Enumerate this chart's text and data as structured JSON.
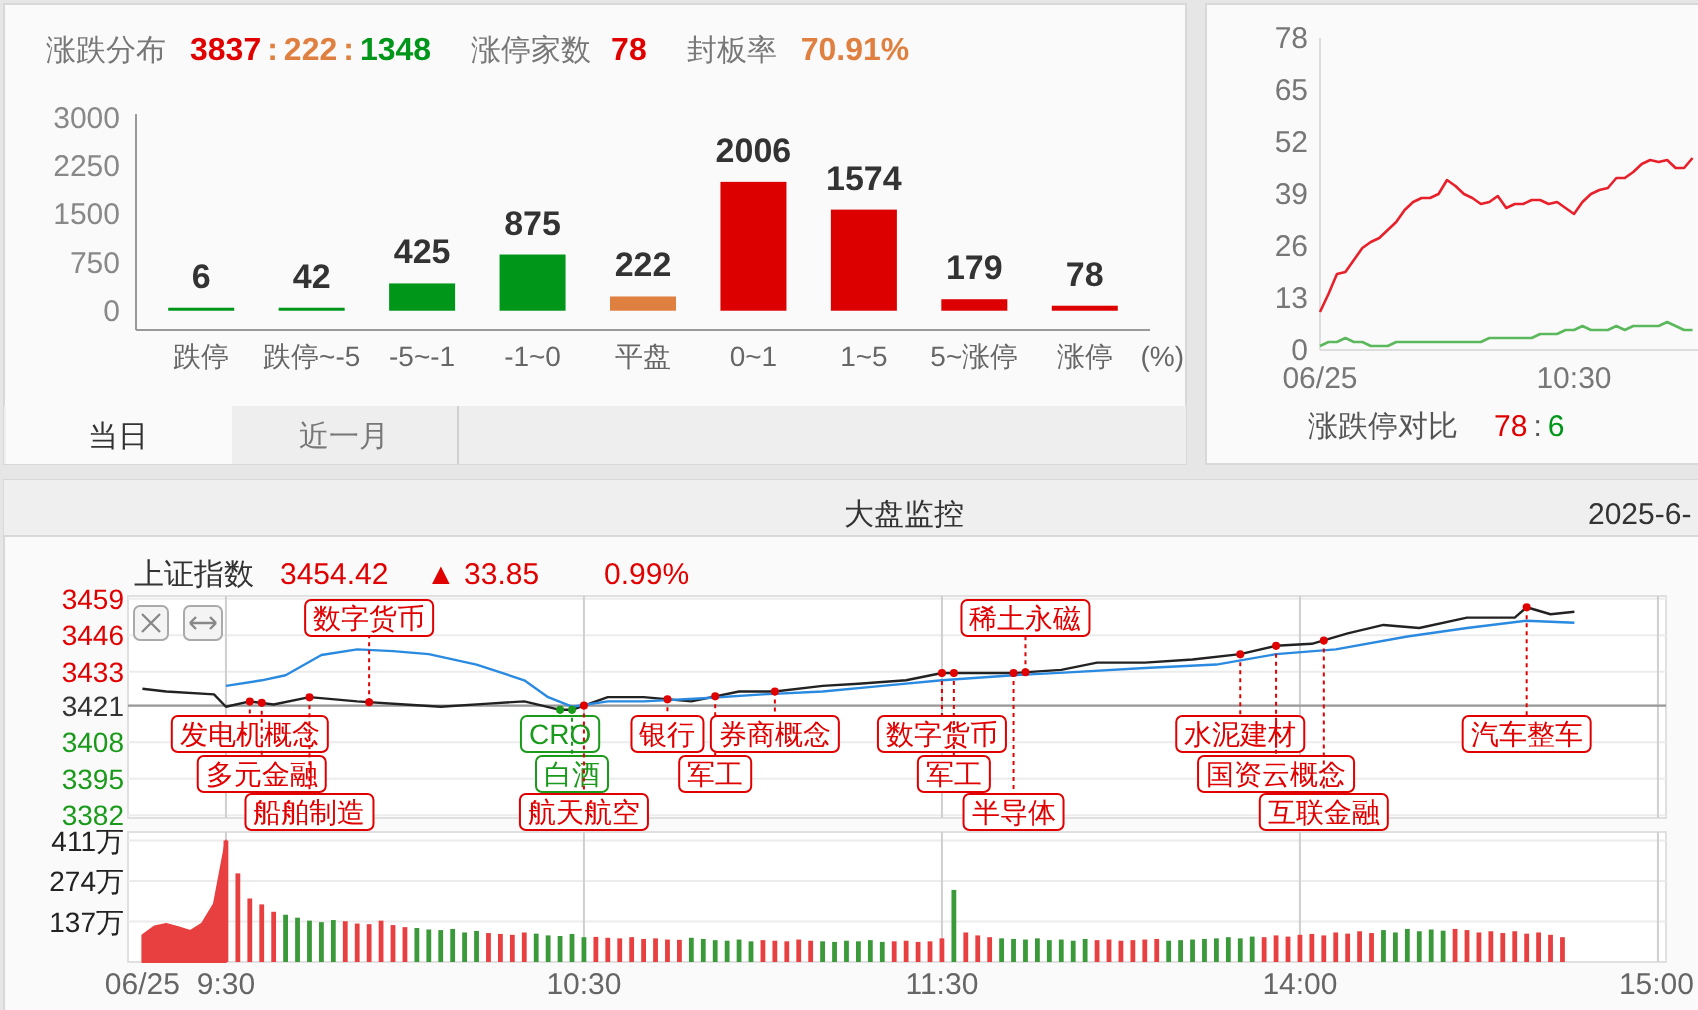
{
  "chart_data": [
    {
      "type": "bar",
      "title": "涨跌分布",
      "annotations": [
        "3837",
        ":",
        "222",
        ":",
        "1348",
        "涨停家数",
        "78",
        "封板率",
        "70.91%",
        "当日",
        "近一月"
      ],
      "categories": [
        "跌停",
        "跌停~-5",
        "-5~-1",
        "-1~0",
        "平盘",
        "0~1",
        "1~5",
        "5~涨停",
        "涨停"
      ],
      "xlabel": "(%)",
      "values": [
        6,
        42,
        425,
        875,
        222,
        2006,
        1574,
        179,
        78
      ],
      "colors": [
        "#00961a",
        "#00961a",
        "#00961a",
        "#00961a",
        "#e08040",
        "#dd0000",
        "#dd0000",
        "#dd0000",
        "#dd0000"
      ],
      "ylim": [
        -300,
        3000
      ],
      "yticks": [
        0,
        750,
        1500,
        2250,
        3000
      ],
      "data_labels": true
    },
    {
      "type": "line",
      "title": "涨跌停对比",
      "annotations": [
        "78",
        ":",
        "6"
      ],
      "categories": [
        "06/25",
        null,
        null,
        null,
        null,
        null,
        null,
        null,
        null,
        null,
        null,
        null,
        null,
        null,
        null,
        null,
        null,
        null,
        null,
        null,
        null,
        null,
        null,
        null,
        null,
        null,
        null,
        null,
        null,
        null,
        "10:30",
        null,
        null,
        null,
        null,
        null,
        null,
        null,
        null,
        null,
        null,
        null,
        null,
        null,
        null
      ],
      "series": [
        {
          "color": "#e8202a",
          "values": [
            9.5,
            14,
            19,
            19.5,
            22.5,
            25.5,
            27,
            28,
            30,
            32,
            35,
            37,
            38,
            38,
            39,
            42.5,
            41,
            39,
            38,
            36.5,
            37,
            38.5,
            35.5,
            36.5,
            36.5,
            37.5,
            37.5,
            36.5,
            37,
            35.5,
            34,
            37,
            39,
            40,
            40.5,
            43,
            43,
            44.5,
            46.5,
            47.5,
            47,
            47.5,
            45.5,
            45.5,
            48
          ]
        },
        {
          "color": "#5cb85c",
          "values": [
            1,
            2,
            2,
            3,
            2,
            2,
            1,
            1,
            1,
            2,
            2,
            2,
            2,
            2,
            2,
            2,
            2,
            2,
            2,
            2,
            3,
            3,
            3,
            3,
            3,
            3,
            4,
            4,
            4,
            5,
            5,
            6,
            5,
            5,
            5,
            6,
            5,
            6,
            6,
            6,
            6,
            7,
            6,
            5,
            5
          ]
        }
      ],
      "ylim": [
        0,
        78
      ],
      "yticks": [
        0,
        13,
        26,
        39,
        52,
        65,
        78
      ],
      "marker": "none",
      "line_style": "solid"
    },
    {
      "type": "line",
      "title": "大盘监控",
      "subtitle": "上证指数",
      "annotations": [
        "3454.42",
        "▲ 33.85",
        "0.99%",
        "2025-6-",
        {
          "text": "发电机概念",
          "y": 3422.5
        },
        {
          "text": "多元金融",
          "y": 3422
        },
        {
          "text": "船舶制造",
          "y": 3424
        },
        {
          "text": "数字货币",
          "y": 3422.2
        },
        {
          "text": "CRO",
          "y": 3419.5
        },
        {
          "text": "白酒",
          "y": 3419.5
        },
        {
          "text": "航天航空",
          "y": 3421
        },
        {
          "text": "银行",
          "y": 3423.3
        },
        {
          "text": "军工",
          "y": 3424.3
        },
        {
          "text": "券商概念",
          "y": 3426
        },
        {
          "text": "数字货币",
          "y": 3432.6
        },
        {
          "text": "军工",
          "y": 3432.6
        },
        {
          "text": "半导体",
          "y": 3432.6
        },
        {
          "text": "稀土永磁",
          "y": 3432.9
        },
        {
          "text": "水泥建材",
          "y": 3439.3
        },
        {
          "text": "国资云概念",
          "y": 3442.3
        },
        {
          "text": "互联金融",
          "y": 3444.2
        },
        {
          "text": "汽车整车",
          "y": 3456
        }
      ],
      "series": [
        {
          "color": "#222222",
          "values": [
            3427,
            null,
            3426,
            null,
            null,
            null,
            3425,
            3420.6,
            null,
            3422.5,
            null,
            3421.4,
            null,
            null,
            3424,
            null,
            null,
            null,
            3422.5,
            null,
            null,
            null,
            3421.4,
            null,
            null,
            3420.6,
            null,
            null,
            null,
            3421.7,
            null,
            null,
            3422.5,
            null,
            null,
            3419.5,
            3419.5,
            null,
            null,
            3424,
            null,
            null,
            3424,
            null,
            null,
            null,
            3422.5,
            null,
            null,
            null,
            3426,
            null,
            null,
            3426,
            null,
            null,
            null,
            3428,
            null,
            null,
            3428.8,
            null,
            null,
            null,
            3430,
            null,
            null,
            3432.6,
            null,
            3432.6,
            null,
            null,
            null,
            3432.6,
            null,
            null,
            null,
            3433.7,
            null,
            null,
            3436.3,
            null,
            null,
            null,
            3436.3,
            null,
            null,
            null,
            3437.4,
            null,
            null,
            null,
            3439.3,
            null,
            null,
            3442.3,
            null,
            null,
            3443,
            null,
            null,
            3446.7,
            null,
            null,
            3449.7,
            null,
            null,
            3448.6,
            null,
            null,
            null,
            3452.3,
            null,
            null,
            null,
            3452.3,
            3456,
            null,
            3453.5,
            null,
            3454.4,
            null,
            null,
            null,
            null,
            null,
            null,
            null
          ]
        },
        {
          "color": "#2a8ae0",
          "values": [
            null,
            null,
            null,
            null,
            null,
            null,
            null,
            3428,
            null,
            null,
            3430,
            null,
            3431.8,
            null,
            null,
            3439,
            null,
            null,
            3441,
            null,
            null,
            3440.4,
            null,
            null,
            3439.3,
            null,
            null,
            null,
            3435.6,
            null,
            null,
            null,
            3430,
            null,
            3424,
            null,
            3420.6,
            null,
            null,
            3422.5,
            null,
            null,
            3422.5,
            null,
            null,
            null,
            null,
            3423.6,
            null,
            null,
            null,
            null,
            3425,
            null,
            null,
            null,
            null,
            3426,
            null,
            null,
            null,
            null,
            3428,
            null,
            null,
            null,
            null,
            3430,
            null,
            null,
            null,
            null,
            null,
            3431.8,
            null,
            null,
            null,
            null,
            3432.9,
            null,
            null,
            null,
            null,
            null,
            3434.4,
            null,
            null,
            null,
            null,
            null,
            3435.6,
            null,
            null,
            null,
            null,
            3439.3,
            null,
            null,
            null,
            null,
            3441,
            null,
            null,
            null,
            null,
            null,
            3445.6,
            null,
            null,
            null,
            null,
            3448.6,
            null,
            null,
            null,
            null,
            3451.2,
            null,
            null,
            null,
            3450.5,
            null,
            null,
            null,
            null,
            null,
            null,
            null
          ]
        }
      ],
      "ylim": [
        3381,
        3460
      ],
      "yticks": [
        3382,
        3395,
        3408,
        3421,
        3433,
        3446,
        3459
      ],
      "tick_labels": "y",
      "ref_lines": [
        {
          "axis": "y",
          "value": 3421,
          "color": "#999999"
        }
      ],
      "grid": true,
      "line_style": "solid"
    },
    {
      "type": "bar",
      "categories": [
        "06/25",
        null,
        null,
        null,
        null,
        null,
        null,
        "9:30",
        null,
        null,
        null,
        null,
        null,
        null,
        null,
        null,
        null,
        null,
        null,
        null,
        null,
        null,
        null,
        null,
        null,
        null,
        null,
        null,
        null,
        null,
        null,
        null,
        null,
        null,
        null,
        null,
        null,
        "10:30",
        null,
        null,
        null,
        null,
        null,
        null,
        null,
        null,
        null,
        null,
        null,
        null,
        null,
        null,
        null,
        null,
        null,
        null,
        null,
        null,
        null,
        null,
        null,
        null,
        null,
        null,
        null,
        null,
        null,
        "11:30",
        null,
        null,
        null,
        null,
        null,
        null,
        null,
        null,
        null,
        null,
        null,
        null,
        null,
        null,
        null,
        null,
        null,
        null,
        null,
        null,
        null,
        null,
        null,
        null,
        null,
        null,
        null,
        null,
        null,
        "14:00",
        null,
        null,
        null,
        null,
        null,
        null,
        null,
        null,
        null,
        null,
        null,
        null,
        null,
        null,
        null,
        null,
        null,
        null,
        null,
        null,
        null,
        null,
        null,
        null,
        null,
        null,
        null,
        null,
        null,
        "15:00"
      ],
      "series": [
        {
          "type": "area",
          "color": "#e84040",
          "values": [
            90,
            120,
            129,
            118,
            105,
            130,
            197,
            411,
            null,
            null,
            null,
            null,
            null,
            null,
            null,
            null,
            null,
            null,
            null,
            null,
            null,
            null,
            null,
            null,
            null,
            null,
            null,
            null,
            null,
            null,
            null,
            null,
            null,
            null,
            null,
            null,
            null,
            null,
            null,
            null,
            null,
            null,
            null,
            null,
            null,
            null,
            null,
            null,
            null,
            null,
            null,
            null,
            null,
            null,
            null,
            null,
            null,
            null,
            null,
            null,
            null,
            null,
            null,
            null,
            null,
            null,
            null,
            null,
            null,
            null,
            null,
            null,
            null,
            null,
            null,
            null,
            null,
            null,
            null,
            null,
            null,
            null,
            null,
            null,
            null,
            null,
            null,
            null,
            null,
            null,
            null,
            null,
            null,
            null,
            null,
            null,
            null,
            null,
            null,
            null,
            null,
            null,
            null,
            null,
            null,
            null,
            null,
            null,
            null,
            null,
            null,
            null,
            null,
            null,
            null,
            null,
            null,
            null,
            null,
            null,
            null,
            null,
            null,
            null,
            null,
            null,
            null,
            null
          ]
        },
        {
          "values": [
            null,
            null,
            null,
            null,
            null,
            null,
            null,
            411,
            300,
            215,
            195,
            170,
            160,
            150,
            140,
            135,
            142,
            138,
            130,
            128,
            140,
            125,
            118,
            115,
            110,
            108,
            112,
            100,
            105,
            98,
            95,
            92,
            100,
            96,
            90,
            88,
            95,
            84,
            85,
            82,
            80,
            84,
            78,
            80,
            76,
            75,
            82,
            78,
            74,
            72,
            76,
            70,
            74,
            72,
            70,
            76,
            72,
            70,
            68,
            72,
            70,
            74,
            68,
            70,
            72,
            68,
            70,
            80,
            244,
            100,
            90,
            84,
            80,
            78,
            76,
            80,
            74,
            76,
            72,
            78,
            74,
            76,
            72,
            74,
            76,
            78,
            72,
            74,
            76,
            78,
            80,
            84,
            80,
            86,
            84,
            90,
            86,
            92,
            95,
            90,
            100,
            96,
            104,
            98,
            108,
            100,
            112,
            104,
            110,
            106,
            112,
            108,
            100,
            104,
            98,
            104,
            96,
            100,
            92,
            84,
            null,
            null,
            null,
            null,
            null,
            null,
            null,
            null
          ],
          "colors": [
            null,
            null,
            null,
            null,
            null,
            null,
            null,
            "#e84040",
            "#e84040",
            "#e84040",
            "#e84040",
            "#e84040",
            "#3a9a3a",
            "#3a9a3a",
            "#3a9a3a",
            "#3a9a3a",
            "#3a9a3a",
            "#e84040",
            "#e84040",
            "#e84040",
            "#e84040",
            "#e84040",
            "#e84040",
            "#3a9a3a",
            "#3a9a3a",
            "#3a9a3a",
            "#3a9a3a",
            "#3a9a3a",
            "#3a9a3a",
            "#e84040",
            "#e84040",
            "#e84040",
            "#e84040",
            "#3a9a3a",
            "#3a9a3a",
            "#3a9a3a",
            "#3a9a3a",
            "#3a9a3a",
            "#e84040",
            "#e84040",
            "#e84040",
            "#e84040",
            "#e84040",
            "#e84040",
            "#e84040",
            "#e84040",
            "#3a9a3a",
            "#3a9a3a",
            "#3a9a3a",
            "#3a9a3a",
            "#3a9a3a",
            "#3a9a3a",
            "#e84040",
            "#e84040",
            "#e84040",
            "#e84040",
            "#e84040",
            "#3a9a3a",
            "#3a9a3a",
            "#3a9a3a",
            "#3a9a3a",
            "#3a9a3a",
            "#3a9a3a",
            "#e84040",
            "#e84040",
            "#e84040",
            "#e84040",
            "#e84040",
            "#3a9a3a",
            "#e84040",
            "#e84040",
            "#e84040",
            "#3a9a3a",
            "#3a9a3a",
            "#3a9a3a",
            "#3a9a3a",
            "#3a9a3a",
            "#3a9a3a",
            "#3a9a3a",
            "#3a9a3a",
            "#e84040",
            "#e84040",
            "#e84040",
            "#e84040",
            "#e84040",
            "#e84040",
            "#3a9a3a",
            "#3a9a3a",
            "#3a9a3a",
            "#3a9a3a",
            "#3a9a3a",
            "#3a9a3a",
            "#3a9a3a",
            "#3a9a3a",
            "#e84040",
            "#e84040",
            "#e84040",
            "#e84040",
            "#e84040",
            "#e84040",
            "#e84040",
            "#e84040",
            "#e84040",
            "#e84040",
            "#3a9a3a",
            "#3a9a3a",
            "#3a9a3a",
            "#3a9a3a",
            "#3a9a3a",
            "#3a9a3a",
            "#e84040",
            "#e84040",
            "#e84040",
            "#e84040",
            "#e84040",
            "#e84040",
            "#e84040",
            "#e84040",
            "#e84040",
            "#e84040",
            null,
            null,
            null,
            null,
            null,
            null,
            null,
            null
          ]
        }
      ],
      "ylim": [
        0,
        440
      ],
      "yticks": [
        {
          "value": 137,
          "label": "137万"
        },
        {
          "value": 274,
          "label": "274万"
        },
        {
          "value": 411,
          "label": "411万"
        }
      ],
      "grid": true
    }
  ]
}
